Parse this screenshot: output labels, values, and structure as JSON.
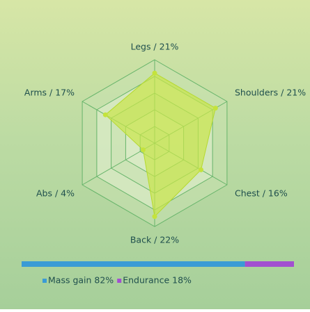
{
  "chart_data": [
    {
      "type": "radar",
      "axes": [
        {
          "name": "Legs",
          "value": 21,
          "label": "Legs / 21%"
        },
        {
          "name": "Shoulders",
          "value": 21,
          "label": "Shoulders / 21%"
        },
        {
          "name": "Chest",
          "value": 16,
          "label": "Chest / 16%"
        },
        {
          "name": "Back",
          "value": 22,
          "label": "Back / 22%"
        },
        {
          "name": "Abs",
          "value": 4,
          "label": "Abs / 4%"
        },
        {
          "name": "Arms",
          "value": 17,
          "label": "Arms / 17%"
        }
      ],
      "rmax": 25,
      "grid_rings": 5,
      "colors": {
        "fill": "#c9e64a",
        "stroke": "#b5d92e",
        "point": "#c4e33c",
        "grid": "#66b46a",
        "ring_fill_outer": "#c9e2b1",
        "ring_fill_inner": "#e1efd0"
      }
    },
    {
      "type": "stacked-bar",
      "series": [
        {
          "name": "Mass gain",
          "value": 82,
          "label": "Mass gain 82%",
          "color": "#3a9bd5"
        },
        {
          "name": "Endurance",
          "value": 18,
          "label": "Endurance 18%",
          "color": "#a24fd0"
        }
      ]
    }
  ]
}
